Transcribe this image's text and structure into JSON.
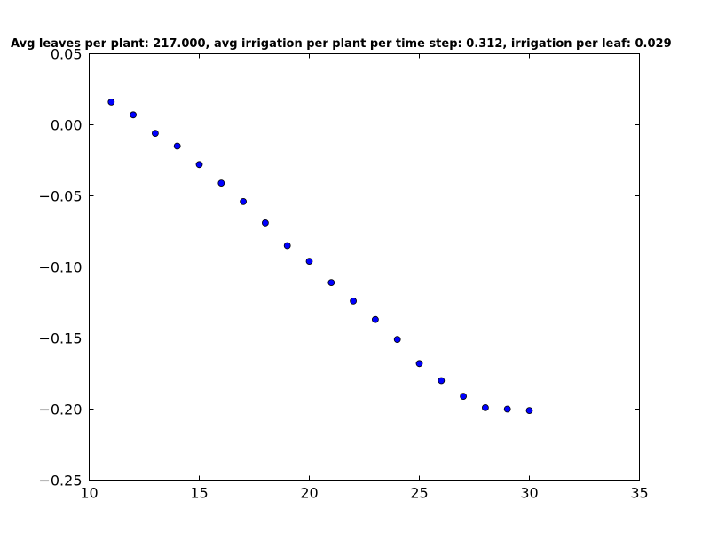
{
  "chart_data": {
    "type": "scatter",
    "title": "Avg leaves per plant: 217.000, avg irrigation per plant per time step: 0.312, irrigation per leaf: 0.029",
    "xlabel": "",
    "ylabel": "",
    "xlim": [
      10,
      35
    ],
    "ylim": [
      -0.25,
      0.05
    ],
    "xticks": [
      10,
      15,
      20,
      25,
      30,
      35
    ],
    "xtick_labels": [
      "10",
      "15",
      "20",
      "25",
      "30",
      "35"
    ],
    "yticks": [
      0.05,
      0.0,
      -0.05,
      -0.1,
      -0.15,
      -0.2,
      -0.25
    ],
    "ytick_labels": [
      "0.05",
      "0.00",
      "−0.05",
      "−0.10",
      "−0.15",
      "−0.20",
      "−0.25"
    ],
    "grid": false,
    "marker_color": "#0000ff",
    "series": [
      {
        "x": [
          11,
          12,
          13,
          14,
          15,
          16,
          17,
          18,
          19,
          20,
          21,
          22,
          23,
          24,
          25,
          26,
          27,
          28,
          29,
          30
        ],
        "y": [
          0.016,
          0.007,
          -0.006,
          -0.015,
          -0.028,
          -0.041,
          -0.054,
          -0.069,
          -0.085,
          -0.096,
          -0.111,
          -0.124,
          -0.137,
          -0.151,
          -0.168,
          -0.18,
          -0.191,
          -0.199,
          -0.2,
          -0.201
        ]
      }
    ]
  }
}
